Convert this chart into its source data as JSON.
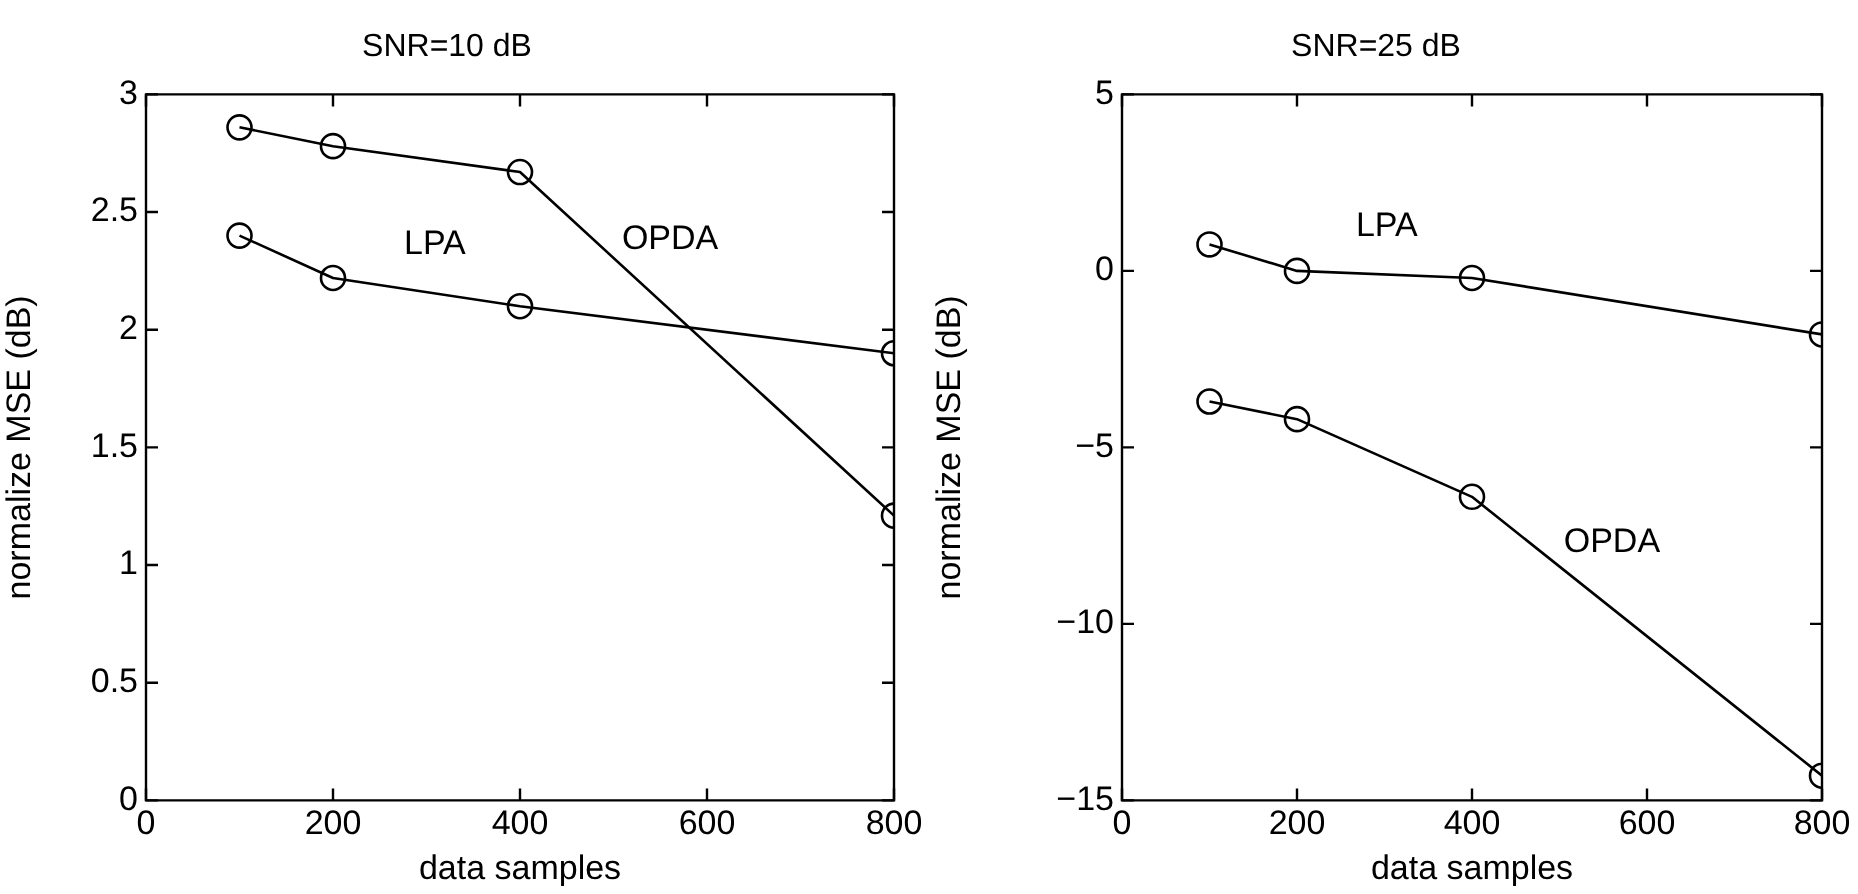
{
  "chart_data": [
    {
      "type": "line",
      "title": "SNR=10 dB",
      "xlabel": "data samples",
      "ylabel": "normalize MSE (dB)",
      "x": [
        100,
        200,
        400,
        800
      ],
      "series": [
        {
          "name": "OPDA",
          "color": "#000000",
          "values": [
            2.86,
            2.78,
            2.67,
            1.21
          ]
        },
        {
          "name": "LPA",
          "color": "#000000",
          "values": [
            2.4,
            2.22,
            2.1,
            1.9
          ]
        }
      ],
      "xlim": [
        0,
        800
      ],
      "xticks": [
        0,
        200,
        400,
        600,
        800
      ],
      "ylim": [
        0,
        3
      ],
      "yticks": [
        0,
        0.5,
        1,
        1.5,
        2,
        2.5,
        3
      ],
      "marker": "circle",
      "grid": false,
      "legend": false
    },
    {
      "type": "line",
      "title": "SNR=25 dB",
      "xlabel": "data samples",
      "ylabel": "normalize MSE (dB)",
      "x": [
        100,
        200,
        400,
        800
      ],
      "series": [
        {
          "name": "OPDA",
          "color": "#000000",
          "values": [
            -3.7,
            -4.2,
            -6.4,
            -14.3
          ]
        },
        {
          "name": "LPA",
          "color": "#000000",
          "values": [
            0.75,
            0,
            -0.2,
            -1.8
          ]
        }
      ],
      "xlim": [
        0,
        800
      ],
      "xticks": [
        0,
        200,
        400,
        600,
        800
      ],
      "ylim": [
        -15,
        5
      ],
      "yticks": [
        -15,
        -10,
        -5,
        0,
        5
      ],
      "marker": "circle",
      "grid": false,
      "legend": false
    }
  ]
}
